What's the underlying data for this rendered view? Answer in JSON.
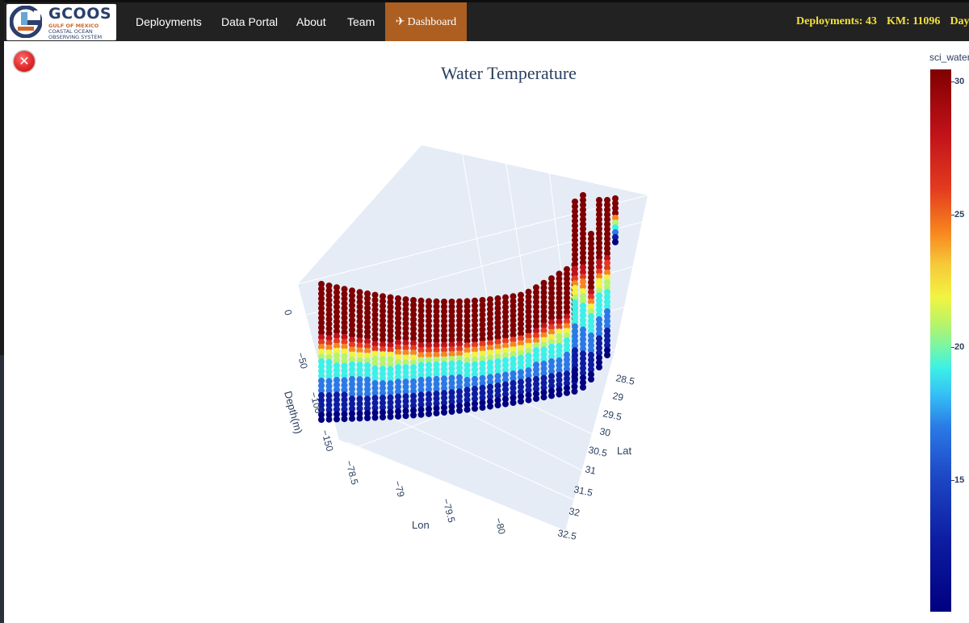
{
  "navbar": {
    "logo": {
      "title": "GCOOS",
      "line1": "GULF OF MEXICO",
      "line2": "COASTAL OCEAN",
      "line3": "OBSERVING SYSTEM"
    },
    "items": [
      {
        "label": "Deployments"
      },
      {
        "label": "Data Portal"
      },
      {
        "label": "About"
      },
      {
        "label": "Team"
      }
    ],
    "active": {
      "label": "Dashboard",
      "icon": "plane-icon"
    },
    "stats": {
      "deployments": "Deployments: 43",
      "km": "KM: 11096",
      "days": "Days"
    }
  },
  "close_button": {
    "icon": "close-icon",
    "glyph": "✕"
  },
  "plot": {
    "title": "Water Temperature",
    "axes": {
      "z_title": "Depth(m)",
      "z_ticks": [
        "0",
        "−50",
        "−100",
        "−150"
      ],
      "x_title": "Lon",
      "x_ticks": [
        "−78.5",
        "−79",
        "−79.5",
        "−80"
      ],
      "y_title": "Lat",
      "y_ticks": [
        "28.5",
        "29",
        "29.5",
        "30",
        "30.5",
        "31",
        "31.5",
        "32",
        "32.5"
      ]
    },
    "colorbar": {
      "title": "sci_water",
      "ticks": [
        "30",
        "25",
        "20",
        "15"
      ],
      "colors": [
        "#000080",
        "#0d1ca1",
        "#2b79e6",
        "#3cf1e6",
        "#b6f46a",
        "#f2f440",
        "#f7861e",
        "#e43a1f",
        "#c1121a",
        "#800000"
      ]
    }
  },
  "colors": {
    "navbar_bg": "#222222",
    "dashboard_bg": "#ad5f21",
    "stats_text": "#f2e13c",
    "scene_bg": "#e5ecf6",
    "axis_text": "#2a3f5f"
  }
}
